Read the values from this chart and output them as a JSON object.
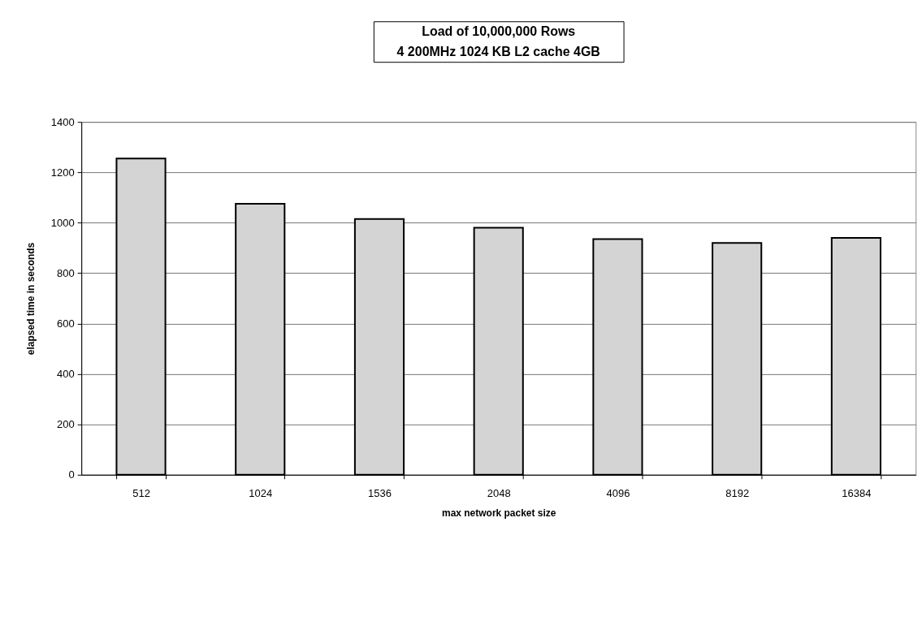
{
  "chart_data": {
    "type": "bar",
    "title": "Load of 10,000,000 Rows",
    "subtitle": "4 200MHz 1024 KB L2 cache 4GB",
    "xlabel": "max network packet size",
    "ylabel": "elapsed time in seconds",
    "categories": [
      "512",
      "1024",
      "1536",
      "2048",
      "4096",
      "8192",
      "16384"
    ],
    "values": [
      1255,
      1075,
      1015,
      980,
      935,
      920,
      940
    ],
    "color": "#d4d4d4",
    "ylim": [
      0,
      1400
    ],
    "yticks": [
      0,
      200,
      400,
      600,
      800,
      1000,
      1200,
      1400
    ],
    "grid": "y"
  }
}
